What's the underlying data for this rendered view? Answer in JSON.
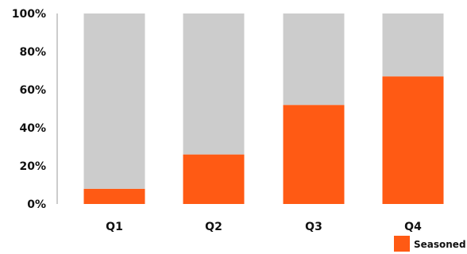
{
  "chart_data": {
    "type": "bar",
    "stacked": true,
    "percent": true,
    "categories": [
      "Q1",
      "Q2",
      "Q3",
      "Q4"
    ],
    "series": [
      {
        "name": "Seasoned",
        "values": [
          8,
          26,
          52,
          67
        ],
        "color": "#FF5A14"
      },
      {
        "values": [
          92,
          74,
          48,
          33
        ],
        "color": "#CCCCCC"
      }
    ],
    "yticks": [
      "0%",
      "20%",
      "40%",
      "60%",
      "80%",
      "100%"
    ],
    "ylim": [
      0,
      100
    ],
    "grid": false,
    "legend": {
      "position": "bottom-right"
    }
  }
}
